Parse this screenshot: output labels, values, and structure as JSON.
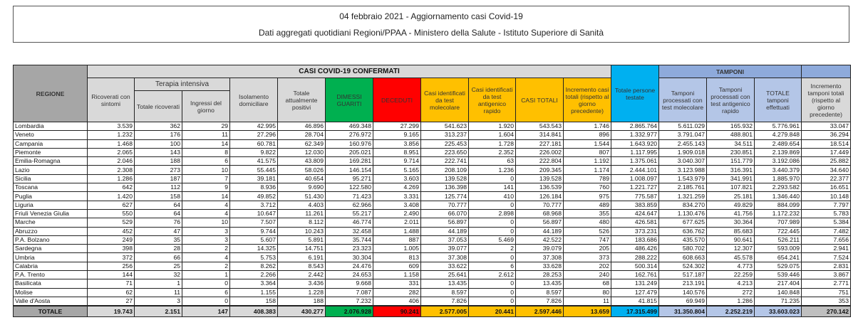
{
  "title": {
    "line1": "04 febbraio 2021 - Aggiornamento casi Covid-19",
    "line2": "Dati aggregati quotidiani Regioni/PPAA - Ministero della Salute - Istituto Superiore di Sanità"
  },
  "header": {
    "regione": "REGIONE",
    "casi_group": "CASI COVID-19 CONFERMATI",
    "tamponi_group": "TAMPONI",
    "terapia_group": "Terapia intensiva",
    "columns": [
      "Ricoverati con sintomi",
      "Totale ricoverati",
      "Ingressi del giorno",
      "Isolamento domiciliare",
      "Totale attualmente positivi",
      "DIMESSI GUARITI",
      "DECEDUTI",
      "Casi identificati da test molecolare",
      "Casi identificati da test antigenico rapido",
      "CASI TOTALI",
      "Incremento casi totali (rispetto al giorno precedente)",
      "Totale persone testate",
      "Tamponi processati con test molecolare",
      "Tamponi processati con test antigenico rapido",
      "TOTALE tamponi effettuati",
      "Incremento tamponi totali (rispetto al giorno precedente)"
    ]
  },
  "colors": {
    "dimessi": "#00b050",
    "deceduti": "#ff0000",
    "casi": "#ffc000",
    "persone": "#00b0f0",
    "tamponi": "#b4c6e7",
    "header": "#d9d9d9"
  },
  "rows": [
    [
      "Lombardia",
      "3.539",
      "362",
      "29",
      "42.995",
      "46.896",
      "469.348",
      "27.299",
      "541.623",
      "1.920",
      "543.543",
      "1.746",
      "2.865.764",
      "5.611.029",
      "165.932",
      "5.776.961",
      "33.047"
    ],
    [
      "Veneto",
      "1.232",
      "176",
      "11",
      "27.296",
      "28.704",
      "276.972",
      "9.165",
      "313.237",
      "1.604",
      "314.841",
      "896",
      "1.332.977",
      "3.791.047",
      "488.801",
      "4.279.848",
      "36.294"
    ],
    [
      "Campania",
      "1.468",
      "100",
      "14",
      "60.781",
      "62.349",
      "160.976",
      "3.856",
      "225.453",
      "1.728",
      "227.181",
      "1.544",
      "1.643.920",
      "2.455.143",
      "34.511",
      "2.489.654",
      "18.514"
    ],
    [
      "Piemonte",
      "2.065",
      "143",
      "8",
      "9.822",
      "12.030",
      "205.021",
      "8.951",
      "223.650",
      "2.352",
      "226.002",
      "807",
      "1.117.995",
      "1.909.018",
      "230.851",
      "2.139.869",
      "17.449"
    ],
    [
      "Emilia-Romagna",
      "2.046",
      "188",
      "6",
      "41.575",
      "43.809",
      "169.281",
      "9.714",
      "222.741",
      "63",
      "222.804",
      "1.192",
      "1.375.061",
      "3.040.307",
      "151.779",
      "3.192.086",
      "25.882"
    ],
    [
      "Lazio",
      "2.308",
      "273",
      "10",
      "55.445",
      "58.026",
      "146.154",
      "5.165",
      "208.109",
      "1.236",
      "209.345",
      "1.174",
      "2.444.101",
      "3.123.988",
      "316.391",
      "3.440.379",
      "34.640"
    ],
    [
      "Sicilia",
      "1.286",
      "187",
      "7",
      "39.181",
      "40.654",
      "95.271",
      "3.603",
      "139.528",
      "0",
      "139.528",
      "789",
      "1.008.097",
      "1.543.979",
      "341.991",
      "1.885.970",
      "22.377"
    ],
    [
      "Toscana",
      "642",
      "112",
      "9",
      "8.936",
      "9.690",
      "122.580",
      "4.269",
      "136.398",
      "141",
      "136.539",
      "760",
      "1.221.727",
      "2.185.761",
      "107.821",
      "2.293.582",
      "16.651"
    ],
    [
      "Puglia",
      "1.420",
      "158",
      "14",
      "49.852",
      "51.430",
      "71.423",
      "3.331",
      "125.774",
      "410",
      "126.184",
      "975",
      "775.587",
      "1.321.259",
      "25.181",
      "1.346.440",
      "10.148"
    ],
    [
      "Liguria",
      "627",
      "64",
      "4",
      "3.712",
      "4.403",
      "62.966",
      "3.408",
      "70.777",
      "0",
      "70.777",
      "489",
      "383.859",
      "834.270",
      "49.829",
      "884.099",
      "7.797"
    ],
    [
      "Friuli Venezia Giulia",
      "550",
      "64",
      "4",
      "10.647",
      "11.261",
      "55.217",
      "2.490",
      "66.070",
      "2.898",
      "68.968",
      "355",
      "424.647",
      "1.130.476",
      "41.756",
      "1.172.232",
      "5.783"
    ],
    [
      "Marche",
      "529",
      "76",
      "10",
      "7.507",
      "8.112",
      "46.774",
      "2.011",
      "56.897",
      "0",
      "56.897",
      "480",
      "426.581",
      "677.625",
      "30.364",
      "707.989",
      "5.384"
    ],
    [
      "Abruzzo",
      "452",
      "47",
      "3",
      "9.744",
      "10.243",
      "32.458",
      "1.488",
      "44.189",
      "0",
      "44.189",
      "526",
      "373.231",
      "636.762",
      "85.683",
      "722.445",
      "7.482"
    ],
    [
      "P.A. Bolzano",
      "249",
      "35",
      "3",
      "5.607",
      "5.891",
      "35.744",
      "887",
      "37.053",
      "5.469",
      "42.522",
      "747",
      "183.686",
      "435.570",
      "90.641",
      "526.211",
      "7.656"
    ],
    [
      "Sardegna",
      "398",
      "28",
      "2",
      "14.325",
      "14.751",
      "23.323",
      "1.005",
      "39.077",
      "2",
      "39.079",
      "205",
      "486.426",
      "580.702",
      "12.307",
      "593.009",
      "2.941"
    ],
    [
      "Umbria",
      "372",
      "66",
      "4",
      "5.753",
      "6.191",
      "30.304",
      "813",
      "37.308",
      "0",
      "37.308",
      "373",
      "288.222",
      "608.663",
      "45.578",
      "654.241",
      "7.524"
    ],
    [
      "Calabria",
      "256",
      "25",
      "2",
      "8.262",
      "8.543",
      "24.476",
      "609",
      "33.622",
      "6",
      "33.628",
      "202",
      "500.314",
      "524.302",
      "4.773",
      "529.075",
      "2.831"
    ],
    [
      "P.A. Trento",
      "144",
      "32",
      "1",
      "2.266",
      "2.442",
      "24.653",
      "1.158",
      "25.641",
      "2.612",
      "28.253",
      "240",
      "162.761",
      "517.187",
      "22.259",
      "539.446",
      "3.867"
    ],
    [
      "Basilicata",
      "71",
      "1",
      "0",
      "3.364",
      "3.436",
      "9.668",
      "331",
      "13.435",
      "0",
      "13.435",
      "68",
      "131.249",
      "213.191",
      "4.213",
      "217.404",
      "2.771"
    ],
    [
      "Molise",
      "62",
      "11",
      "6",
      "1.155",
      "1.228",
      "7.087",
      "282",
      "8.597",
      "0",
      "8.597",
      "80",
      "127.479",
      "140.576",
      "272",
      "140.848",
      "751"
    ],
    [
      "Valle d'Aosta",
      "27",
      "3",
      "0",
      "158",
      "188",
      "7.232",
      "406",
      "7.826",
      "0",
      "7.826",
      "11",
      "41.815",
      "69.949",
      "1.286",
      "71.235",
      "353"
    ]
  ],
  "totals": [
    "TOTALE",
    "19.743",
    "2.151",
    "147",
    "408.383",
    "430.277",
    "2.076.928",
    "90.241",
    "2.577.005",
    "20.441",
    "2.597.446",
    "13.659",
    "17.315.499",
    "31.350.804",
    "2.252.219",
    "33.603.023",
    "270.142"
  ]
}
